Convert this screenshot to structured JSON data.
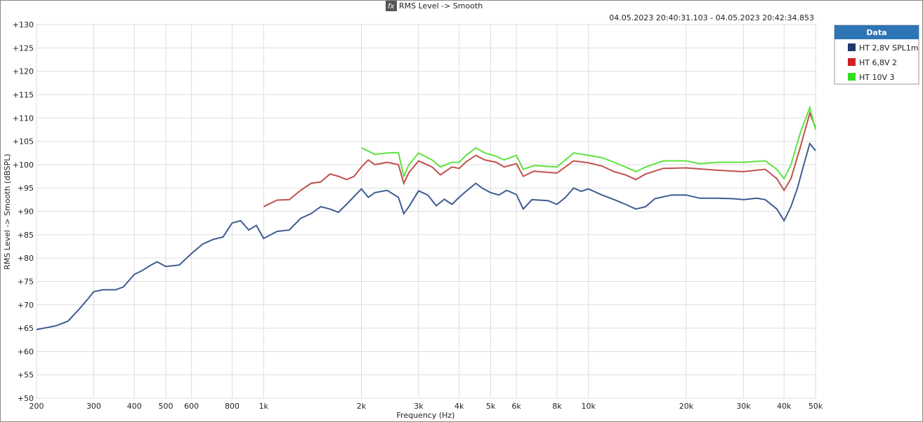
{
  "chart_data": {
    "type": "line",
    "title": "RMS Level -> Smooth",
    "subtitle": "04.05.2023 20:40:31.103 - 04.05.2023 20:42:34.853",
    "x_label": "Frequency (Hz)",
    "y_label": "RMS Level -> Smooth (dBSPL)",
    "legend_title": "Data",
    "x_scale": "log",
    "grid": true,
    "legend": "outside-right",
    "xlim": [
      200,
      50000
    ],
    "ylim": [
      50,
      130
    ],
    "xticks": [
      200,
      300,
      400,
      500,
      600,
      800,
      {
        "value": 1000,
        "label": "1k"
      },
      {
        "value": 2000,
        "label": "2k"
      },
      {
        "value": 3000,
        "label": "3k"
      },
      {
        "value": 4000,
        "label": "4k"
      },
      {
        "value": 5000,
        "label": "5k"
      },
      {
        "value": 6000,
        "label": "6k"
      },
      {
        "value": 8000,
        "label": "8k"
      },
      {
        "value": 10000,
        "label": "10k"
      },
      {
        "value": 20000,
        "label": "20k"
      },
      {
        "value": 30000,
        "label": "30k"
      },
      {
        "value": 40000,
        "label": "40k"
      },
      {
        "value": 50000,
        "label": "50k"
      }
    ],
    "yticks": [
      {
        "value": 130,
        "label": "+130"
      },
      {
        "value": 125,
        "label": "+125"
      },
      {
        "value": 120,
        "label": "+120"
      },
      {
        "value": 115,
        "label": "+115"
      },
      {
        "value": 110,
        "label": "+110"
      },
      {
        "value": 105,
        "label": "+105"
      },
      {
        "value": 100,
        "label": "+100"
      },
      {
        "value": 95,
        "label": "+95"
      },
      {
        "value": 90,
        "label": "+90"
      },
      {
        "value": 85,
        "label": "+85"
      },
      {
        "value": 80,
        "label": "+80"
      },
      {
        "value": 75,
        "label": "+75"
      },
      {
        "value": 70,
        "label": "+70"
      },
      {
        "value": 65,
        "label": "+65"
      },
      {
        "value": 60,
        "label": "+60"
      },
      {
        "value": 55,
        "label": "+55"
      },
      {
        "value": 50,
        "label": "+50"
      }
    ],
    "series": [
      {
        "name": "HT 2,8V SPL1m",
        "color": "#3f5b91",
        "legend_color": "#1f3870",
        "x": [
          200,
          230,
          250,
          270,
          290,
          300,
          320,
          350,
          370,
          400,
          420,
          450,
          470,
          500,
          550,
          600,
          650,
          700,
          750,
          800,
          850,
          900,
          950,
          1000,
          1100,
          1200,
          1300,
          1400,
          1500,
          1600,
          1700,
          1800,
          2000,
          2100,
          2200,
          2400,
          2600,
          2700,
          2800,
          3000,
          3200,
          3400,
          3600,
          3800,
          4000,
          4200,
          4500,
          4700,
          5000,
          5300,
          5600,
          6000,
          6300,
          6700,
          7500,
          8000,
          8500,
          9000,
          9500,
          10000,
          11000,
          12000,
          13000,
          14000,
          15000,
          16000,
          18000,
          20000,
          22000,
          25000,
          28000,
          30000,
          33000,
          35000,
          38000,
          40000,
          42000,
          44000,
          46000,
          48000,
          50000
        ],
        "values": [
          64.7,
          65.5,
          66.5,
          69,
          71.5,
          72.8,
          73.2,
          73.2,
          73.8,
          76.5,
          77.2,
          78.5,
          79.2,
          78.2,
          78.5,
          81,
          83,
          84,
          84.5,
          87.5,
          88,
          86,
          87,
          84.2,
          85.7,
          86,
          88.5,
          89.5,
          91,
          90.5,
          89.8,
          91.5,
          94.8,
          93,
          94,
          94.5,
          93,
          89.5,
          91,
          94.4,
          93.5,
          91.2,
          92.6,
          91.5,
          93,
          94.3,
          96,
          95,
          94,
          93.5,
          94.5,
          93.6,
          90.5,
          92.5,
          92.3,
          91.5,
          93,
          95,
          94.3,
          94.8,
          93.5,
          92.5,
          91.5,
          90.5,
          91,
          92.7,
          93.5,
          93.5,
          92.8,
          92.8,
          92.7,
          92.5,
          92.8,
          92.5,
          90.5,
          88,
          91,
          95,
          100,
          104.5,
          103
        ]
      },
      {
        "name": "HT 6,8V 2",
        "color": "#c0504d",
        "legend_color": "#cc2222",
        "x": [
          1000,
          1100,
          1200,
          1300,
          1400,
          1500,
          1600,
          1700,
          1800,
          1900,
          2000,
          2100,
          2200,
          2400,
          2600,
          2700,
          2800,
          3000,
          3300,
          3500,
          3800,
          4000,
          4200,
          4500,
          4800,
          5200,
          5500,
          6000,
          6300,
          6800,
          8000,
          9000,
          10000,
          11000,
          12000,
          13000,
          14000,
          15000,
          17000,
          20000,
          25000,
          30000,
          35000,
          38000,
          40000,
          42000,
          45000,
          48000,
          50000
        ],
        "values": [
          91,
          92.4,
          92.5,
          94.5,
          96,
          96.3,
          98,
          97.5,
          96.8,
          97.5,
          99.5,
          101,
          100,
          100.5,
          100,
          96,
          98.3,
          100.8,
          99.5,
          97.8,
          99.5,
          99.2,
          100.6,
          102,
          101,
          100.5,
          99.5,
          100.2,
          97.5,
          98.6,
          98.2,
          100.8,
          100.4,
          99.7,
          98.5,
          97.8,
          96.8,
          98,
          99.2,
          99.3,
          98.8,
          98.5,
          99,
          97,
          94.5,
          97,
          104,
          111,
          108
        ]
      },
      {
        "name": "HT 10V 3",
        "color": "#5fe33f",
        "legend_color": "#33dd22",
        "x": [
          2000,
          2200,
          2400,
          2600,
          2700,
          2800,
          3000,
          3300,
          3500,
          3800,
          4000,
          4200,
          4500,
          4800,
          5200,
          5500,
          6000,
          6300,
          6800,
          8000,
          9000,
          10000,
          11000,
          12000,
          13000,
          14000,
          15000,
          17000,
          20000,
          22000,
          25000,
          30000,
          35000,
          38000,
          40000,
          42000,
          45000,
          48000,
          50000
        ],
        "values": [
          103.6,
          102.2,
          102.5,
          102.6,
          97.5,
          100,
          102.5,
          101,
          99.5,
          100.5,
          100.5,
          102,
          103.6,
          102.5,
          101.8,
          101,
          102,
          99,
          99.8,
          99.5,
          102.5,
          102,
          101.5,
          100.5,
          99.5,
          98.5,
          99.5,
          100.8,
          100.8,
          100.2,
          100.5,
          100.5,
          100.8,
          99,
          97,
          100,
          107,
          112.2,
          107.5
        ]
      }
    ]
  }
}
